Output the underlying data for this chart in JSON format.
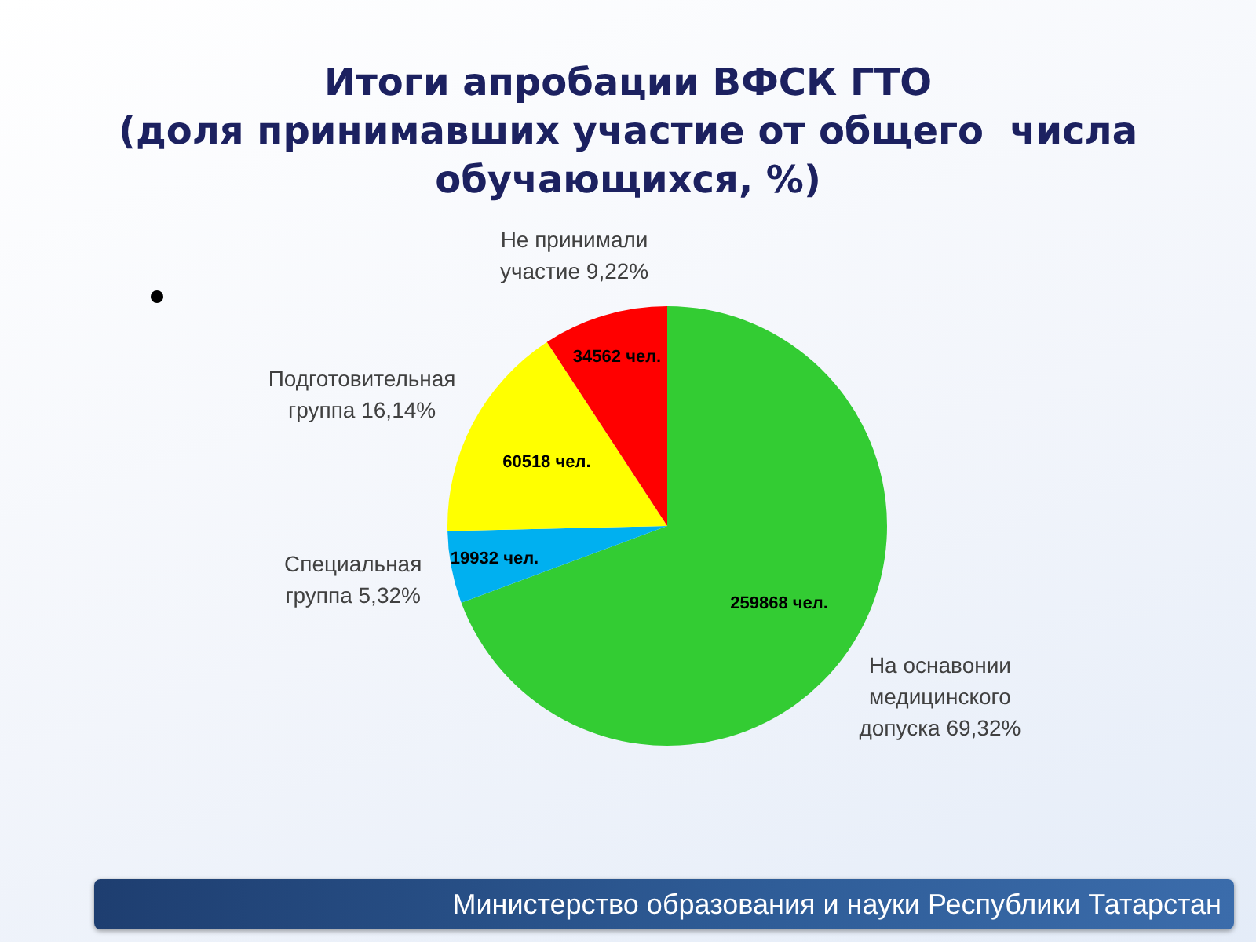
{
  "chart_data": {
    "type": "pie",
    "title": "Итоги апробации ВФСК ГТО",
    "subtitle": "(доля принимавших участие от общего  числа обучающихся, %)",
    "categories": [
      "На оснавонии медицинского допуска 69,32%",
      "Специальная группа 5,32%",
      "Подготовительная группа 16,14%",
      "Не принимали участие 9,22%"
    ],
    "values": [
      259868,
      19932,
      60518,
      34562
    ],
    "colors": [
      "#33cc33",
      "#00b0f0",
      "#ffff00",
      "#ff0000"
    ],
    "value_labels": [
      "259868 чел.",
      "19932 чел.",
      "60518 чел.",
      "34562 чел."
    ],
    "annotations": [
      "Министерство образования и науки Республики Татарстан"
    ]
  }
}
